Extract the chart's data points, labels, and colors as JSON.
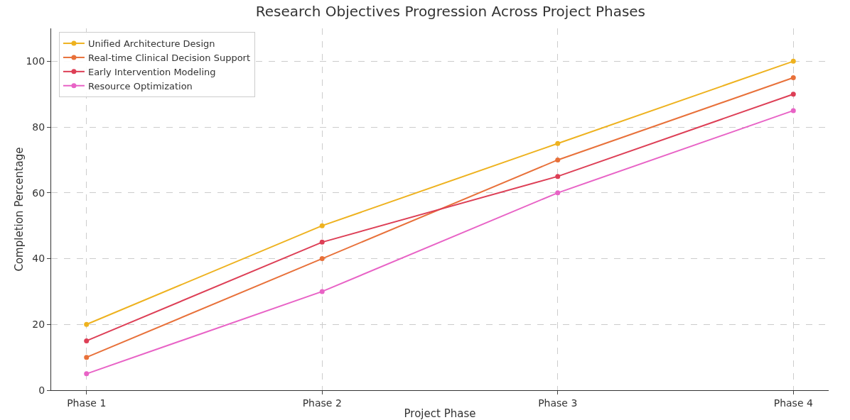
{
  "chart_data": {
    "type": "line",
    "title": "Research Objectives Progression Across Project Phases",
    "xlabel": "Project Phase",
    "ylabel": "Completion Percentage",
    "categories": [
      "Phase 1",
      "Phase 2",
      "Phase 3",
      "Phase 4"
    ],
    "series": [
      {
        "name": "Unified Architecture Design",
        "color": "#eeb21f",
        "values": [
          20,
          50,
          75,
          100
        ]
      },
      {
        "name": "Real-time Clinical Decision Support",
        "color": "#e8713a",
        "values": [
          10,
          40,
          70,
          95
        ]
      },
      {
        "name": "Early Intervention Modeling",
        "color": "#dd3f56",
        "values": [
          15,
          45,
          65,
          90
        ]
      },
      {
        "name": "Resource Optimization",
        "color": "#e863c6",
        "values": [
          5,
          30,
          60,
          85
        ]
      }
    ],
    "ylim": [
      0,
      110
    ],
    "yticks": [
      0,
      20,
      40,
      60,
      80,
      100
    ],
    "grid": true,
    "legend": "top left",
    "marker": "circle",
    "line_style": "solid"
  }
}
